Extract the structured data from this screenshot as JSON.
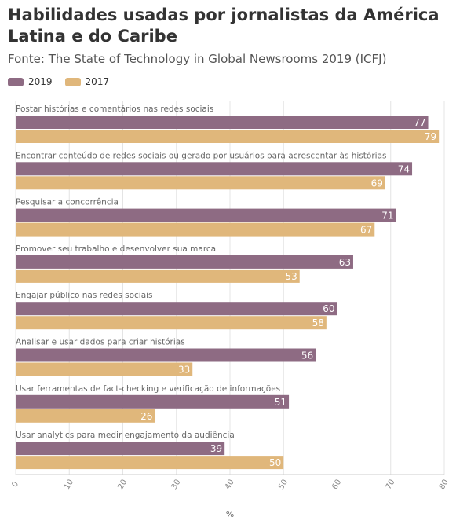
{
  "header": {
    "title": "Habilidades usadas por jornalistas da América Latina e do Caribe",
    "subtitle": "Fonte: The State of Technology in Global Newsrooms 2019 (ICFJ)"
  },
  "colors": {
    "s2019": "#8e6b83",
    "s2017": "#e0b77b",
    "grid": "#e4e4e4",
    "axis": "#cccccc"
  },
  "chart_data": {
    "type": "bar",
    "orientation": "horizontal",
    "categories": [
      "Postar histórias e comentários nas redes sociais",
      "Encontrar conteúdo de redes sociais ou gerado por usuários para acrescentar às histórias",
      "Pesquisar a concorrência",
      "Promover seu trabalho e desenvolver sua marca",
      "Engajar público nas redes sociais",
      "Analisar e usar dados para criar histórias",
      "Usar ferramentas de fact-checking e verificação de informações",
      "Usar analytics para medir engajamento da audiência"
    ],
    "series": [
      {
        "name": "2019",
        "color": "#8e6b83",
        "values": [
          77,
          74,
          71,
          63,
          60,
          56,
          51,
          39
        ]
      },
      {
        "name": "2017",
        "color": "#e0b77b",
        "values": [
          79,
          69,
          67,
          53,
          58,
          33,
          26,
          50
        ]
      }
    ],
    "xlim": [
      0,
      80
    ],
    "xticks": [
      "0",
      "10",
      "20",
      "30",
      "40",
      "50",
      "60",
      "70",
      "80"
    ],
    "xlabel": "%",
    "legend": "top-left",
    "grid": true
  }
}
